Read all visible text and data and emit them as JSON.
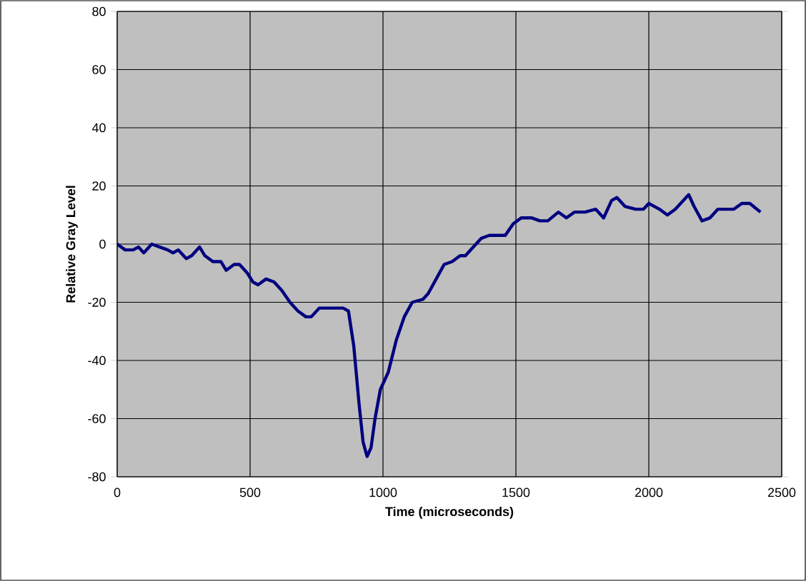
{
  "chart_data": {
    "type": "line",
    "xlabel": "Time (microseconds)",
    "ylabel": "Relative Gray Level",
    "xlim": [
      0,
      2500
    ],
    "xticks": [
      0,
      500,
      1000,
      1500,
      2000,
      2500
    ],
    "ylim": [
      -80,
      80
    ],
    "yticks": [
      -80,
      -60,
      -40,
      -20,
      0,
      20,
      40,
      60,
      80
    ],
    "grid": true,
    "marker": "none",
    "line_style": "solid",
    "series": [
      {
        "color": "#000080",
        "x": [
          0,
          30,
          60,
          80,
          100,
          130,
          160,
          190,
          210,
          230,
          260,
          280,
          310,
          330,
          360,
          390,
          410,
          440,
          460,
          490,
          510,
          530,
          560,
          590,
          620,
          650,
          680,
          710,
          730,
          760,
          800,
          850,
          870,
          890,
          910,
          925,
          940,
          955,
          970,
          990,
          1020,
          1050,
          1080,
          1110,
          1150,
          1170,
          1200,
          1230,
          1260,
          1290,
          1310,
          1340,
          1370,
          1400,
          1430,
          1460,
          1490,
          1520,
          1560,
          1590,
          1620,
          1660,
          1690,
          1720,
          1760,
          1800,
          1830,
          1860,
          1880,
          1910,
          1950,
          1980,
          2000,
          2040,
          2070,
          2100,
          2150,
          2170,
          2200,
          2230,
          2260,
          2290,
          2320,
          2350,
          2380,
          2420
        ],
        "values": [
          0,
          -2,
          -2,
          -1,
          -3,
          0,
          -1,
          -2,
          -3,
          -2,
          -5,
          -4,
          -1,
          -4,
          -6,
          -6,
          -9,
          -7,
          -7,
          -10,
          -13,
          -14,
          -12,
          -13,
          -16,
          -20,
          -23,
          -25,
          -25,
          -22,
          -22,
          -22,
          -23,
          -35,
          -55,
          -68,
          -73,
          -70,
          -60,
          -50,
          -44,
          -33,
          -25,
          -20,
          -19,
          -17,
          -12,
          -7,
          -6,
          -4,
          -4,
          -1,
          2,
          3,
          3,
          3,
          7,
          9,
          9,
          8,
          8,
          11,
          9,
          11,
          11,
          12,
          9,
          15,
          16,
          13,
          12,
          12,
          14,
          12,
          10,
          12,
          17,
          13,
          8,
          9,
          12,
          12,
          12,
          14,
          14,
          11
        ]
      }
    ]
  }
}
